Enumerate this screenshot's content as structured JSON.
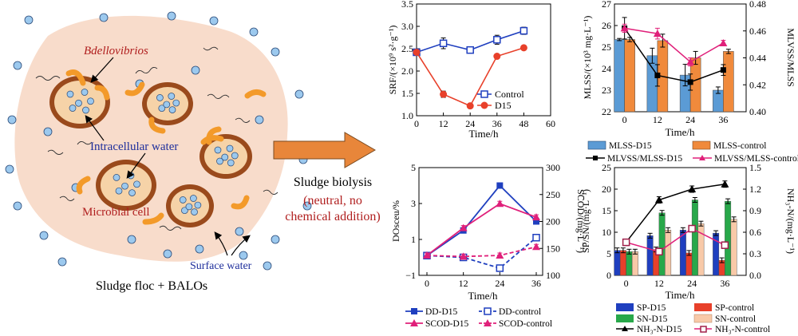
{
  "left_diagram": {
    "label_bdellovibrios": "Bdellovibrios",
    "label_intracellular": "Intracellular water",
    "label_microbial": "Microbial cell",
    "label_surface": "Surface water",
    "caption": "Sludge floc + BALOs"
  },
  "middle": {
    "line1": "Sludge biolysis",
    "line2": "(neutral, no",
    "line3": "chemical addition)"
  },
  "colors": {
    "floc": "#f8dccb",
    "cell_edge": "#9a4a1c",
    "cell_fill": "#f6d3a8",
    "bdello": "#f39a2a",
    "bubble": "#9cc9ee",
    "arrow": "#e8863a",
    "red_text": "#b01e1e",
    "blue_text": "#1f2f9c",
    "blue": "#1f3fbf",
    "red": "#e8402a",
    "orange": "#f08a3c",
    "lightblue": "#5b9bd5",
    "magenta": "#e0207a",
    "green": "#28a84a",
    "peach": "#f8c9a8"
  },
  "chart_data": [
    {
      "type": "line",
      "ylabel": "SRF/(×10⁹ s²·g⁻¹)",
      "xlabel": "Time/h",
      "x": [
        0,
        12,
        24,
        36,
        48
      ],
      "xlim": [
        0,
        60
      ],
      "ylim": [
        1.0,
        3.5
      ],
      "xticks": [
        "0",
        "12",
        "24",
        "36",
        "48",
        "60"
      ],
      "yticks": [
        "1.0",
        "1.5",
        "2.0",
        "2.5",
        "3.0",
        "3.5"
      ],
      "legend": "bottom-right",
      "series": [
        {
          "name": "Control",
          "values": [
            2.42,
            2.62,
            2.47,
            2.7,
            2.9
          ],
          "errors": [
            0.05,
            0.12,
            0.05,
            0.1,
            0.08
          ]
        },
        {
          "name": "D15",
          "values": [
            2.42,
            1.48,
            1.22,
            2.33,
            2.52
          ],
          "errors": [
            0.03,
            0.07,
            0.05,
            0.03,
            0.03
          ]
        }
      ]
    },
    {
      "type": "bar",
      "ylabel": "MLSS/(×10³ mg·L⁻¹)",
      "y2label": "MLVSS/MLSS",
      "xlabel": "Time/h",
      "categories": [
        "0",
        "12",
        "24",
        "36"
      ],
      "ylim": [
        22,
        27
      ],
      "y2lim": [
        0.4,
        0.48
      ],
      "yticks": [
        "22",
        "23",
        "24",
        "25",
        "26",
        "27"
      ],
      "y2ticks": [
        "0.40",
        "0.42",
        "0.44",
        "0.46",
        "0.48"
      ],
      "legend": "bottom",
      "series": [
        {
          "name": "MLSS-D15",
          "values": [
            25.35,
            24.6,
            23.7,
            23.0
          ],
          "errors": [
            0.05,
            0.35,
            0.5,
            0.15
          ]
        },
        {
          "name": "MLSS-control",
          "values": [
            25.35,
            25.3,
            24.5,
            24.8
          ],
          "errors": [
            0.1,
            0.3,
            0.3,
            0.1
          ]
        },
        {
          "name": "MLVSS/MLSS-D15",
          "axis": "right",
          "values": [
            0.462,
            0.427,
            0.422,
            0.431
          ],
          "errors": [
            0.008,
            0.008,
            0.006,
            0.004
          ]
        },
        {
          "name": "MLVSS/MLSS-control",
          "axis": "right",
          "values": [
            0.462,
            0.458,
            0.437,
            0.451
          ],
          "errors": [
            0.003,
            0.004,
            0.003,
            0.002
          ]
        }
      ]
    },
    {
      "type": "line",
      "ylabel": "DOsceu/%",
      "y2label": "SCOD/(mg·L⁻¹)",
      "xlabel": "Time/h",
      "x": [
        0,
        12,
        24,
        36
      ],
      "xlim": [
        0,
        36
      ],
      "ylim": [
        -1,
        5
      ],
      "y2lim": [
        100,
        300
      ],
      "yticks": [
        "−1",
        "1",
        "3",
        "5"
      ],
      "y2ticks": [
        "100",
        "150",
        "200",
        "250",
        "300"
      ],
      "legend": "bottom",
      "series": [
        {
          "name": "DD-D15",
          "values": [
            0.1,
            1.5,
            4.0,
            2.0
          ]
        },
        {
          "name": "DD-control",
          "values": [
            0.1,
            0.0,
            -0.6,
            1.1
          ]
        },
        {
          "name": "SCOD-D15",
          "axis": "right",
          "values": [
            137,
            188,
            233,
            208
          ]
        },
        {
          "name": "SCOD-control",
          "axis": "right",
          "values": [
            137,
            135,
            137,
            153
          ]
        }
      ]
    },
    {
      "type": "bar",
      "ylabel": "SP/SN/(mg·L⁻¹)",
      "y2label": "NH₃-N/(mg·L⁻¹)",
      "xlabel": "Time/h",
      "categories": [
        "0",
        "12",
        "24",
        "36"
      ],
      "ylim": [
        0,
        25
      ],
      "y2lim": [
        0,
        1.5
      ],
      "yticks": [
        "0",
        "5",
        "10",
        "15",
        "20",
        "25"
      ],
      "y2ticks": [
        "0.0",
        "0.3",
        "0.6",
        "0.9",
        "1.2",
        "1.5"
      ],
      "legend": "bottom",
      "series": [
        {
          "name": "SP-D15",
          "values": [
            5.8,
            9.2,
            10.5,
            9.8
          ]
        },
        {
          "name": "SP-control",
          "values": [
            5.8,
            6.0,
            5.2,
            3.5
          ]
        },
        {
          "name": "SN-D15",
          "values": [
            5.5,
            14.5,
            17.5,
            17.2
          ]
        },
        {
          "name": "SN-control",
          "values": [
            5.5,
            10.5,
            12.0,
            13.0
          ]
        },
        {
          "name": "NH₃-N-D15",
          "axis": "right",
          "values": [
            0.46,
            1.05,
            1.2,
            1.27
          ]
        },
        {
          "name": "NH₃-N-control",
          "axis": "right",
          "values": [
            0.46,
            0.33,
            0.65,
            0.42
          ]
        }
      ]
    }
  ]
}
